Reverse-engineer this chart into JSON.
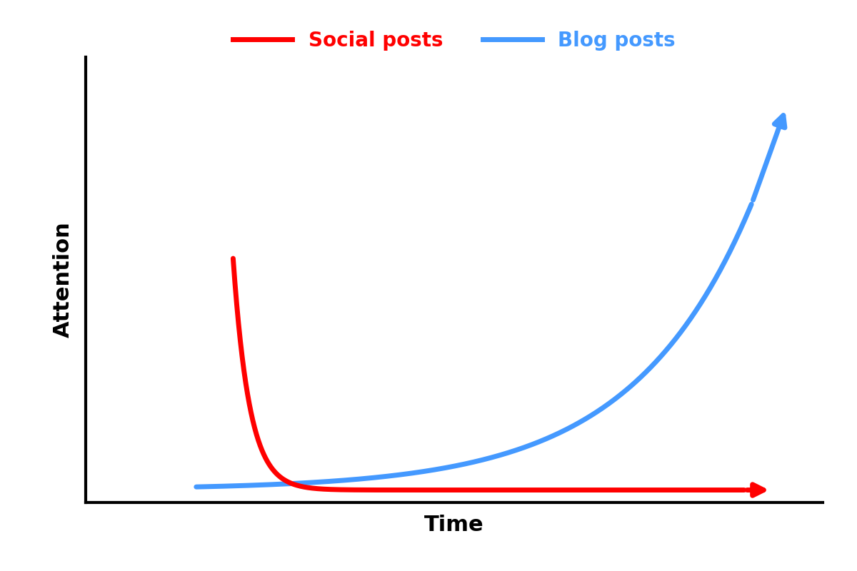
{
  "xlabel": "Time",
  "ylabel": "Attention",
  "xlabel_fontsize": 22,
  "ylabel_fontsize": 22,
  "xlabel_fontweight": "bold",
  "ylabel_fontweight": "bold",
  "background_color": "#ffffff",
  "social_color": "#ff0000",
  "blog_color": "#4499ff",
  "line_width": 5.0,
  "legend_social_label": "Social posts",
  "legend_blog_label": "Blog posts",
  "legend_fontsize": 20,
  "xlim": [
    0,
    10
  ],
  "ylim": [
    0,
    10
  ]
}
